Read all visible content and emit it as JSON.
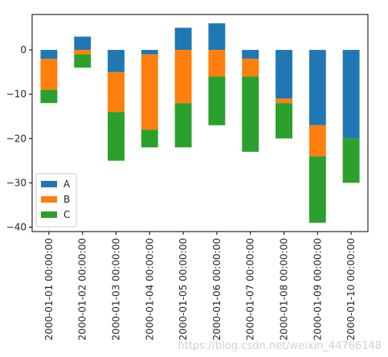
{
  "chart_data": {
    "type": "bar",
    "stacked": true,
    "categories": [
      "2000-01-01 00:00:00",
      "2000-01-02 00:00:00",
      "2000-01-03 00:00:00",
      "2000-01-04 00:00:00",
      "2000-01-05 00:00:00",
      "2000-01-06 00:00:00",
      "2000-01-07 00:00:00",
      "2000-01-08 00:00:00",
      "2000-01-09 00:00:00",
      "2000-01-10 00:00:00"
    ],
    "series": [
      {
        "name": "A",
        "color": "#1f77b4",
        "values": [
          -2,
          3,
          -5,
          -1,
          5,
          6,
          -2,
          -11,
          -17,
          -20
        ]
      },
      {
        "name": "B",
        "color": "#ff7f0e",
        "values": [
          -7,
          -1,
          -9,
          -17,
          -12,
          -6,
          -4,
          -1,
          -7,
          0
        ]
      },
      {
        "name": "C",
        "color": "#2ca02c",
        "values": [
          -3,
          -3,
          -11,
          -4,
          -10,
          -11,
          -17,
          -8,
          -15,
          -10
        ]
      }
    ],
    "yticks": [
      0,
      -10,
      -20,
      -30,
      -40
    ],
    "ylim": [
      -41,
      8
    ],
    "legend": "lower-left",
    "grid": false,
    "title": "",
    "xlabel": "",
    "ylabel": ""
  },
  "watermark": "https://blog.csdn.net/weixin_44766148"
}
